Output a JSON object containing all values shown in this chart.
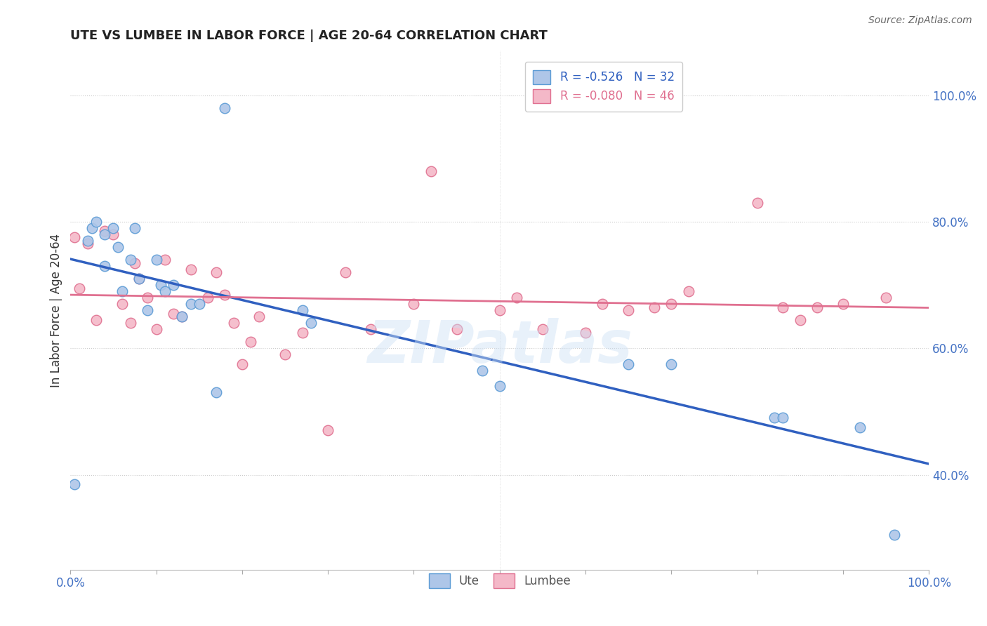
{
  "title": "UTE VS LUMBEE IN LABOR FORCE | AGE 20-64 CORRELATION CHART",
  "ylabel": "In Labor Force | Age 20-64",
  "source_text": "Source: ZipAtlas.com",
  "ute_R": -0.526,
  "ute_N": 32,
  "lumbee_R": -0.08,
  "lumbee_N": 46,
  "ute_color": "#aec6e8",
  "ute_edge_color": "#5b9bd5",
  "lumbee_color": "#f4b8c8",
  "lumbee_edge_color": "#e07090",
  "trend_ute_color": "#3060c0",
  "trend_lumbee_color": "#e07090",
  "ute_x": [
    0.005,
    0.02,
    0.025,
    0.03,
    0.04,
    0.04,
    0.05,
    0.055,
    0.06,
    0.07,
    0.075,
    0.08,
    0.09,
    0.1,
    0.105,
    0.11,
    0.12,
    0.13,
    0.14,
    0.15,
    0.17,
    0.18,
    0.27,
    0.28,
    0.48,
    0.5,
    0.65,
    0.7,
    0.82,
    0.83,
    0.92,
    0.96
  ],
  "ute_y": [
    0.385,
    0.77,
    0.79,
    0.8,
    0.78,
    0.73,
    0.79,
    0.76,
    0.69,
    0.74,
    0.79,
    0.71,
    0.66,
    0.74,
    0.7,
    0.69,
    0.7,
    0.65,
    0.67,
    0.67,
    0.53,
    0.98,
    0.66,
    0.64,
    0.565,
    0.54,
    0.575,
    0.575,
    0.49,
    0.49,
    0.475,
    0.305
  ],
  "lumbee_x": [
    0.005,
    0.01,
    0.02,
    0.03,
    0.04,
    0.05,
    0.06,
    0.07,
    0.075,
    0.08,
    0.09,
    0.1,
    0.11,
    0.12,
    0.13,
    0.14,
    0.16,
    0.17,
    0.18,
    0.19,
    0.2,
    0.21,
    0.22,
    0.25,
    0.27,
    0.3,
    0.32,
    0.35,
    0.4,
    0.42,
    0.45,
    0.5,
    0.52,
    0.55,
    0.6,
    0.62,
    0.65,
    0.68,
    0.7,
    0.72,
    0.8,
    0.83,
    0.85,
    0.87,
    0.9,
    0.95
  ],
  "lumbee_y": [
    0.775,
    0.695,
    0.765,
    0.645,
    0.785,
    0.78,
    0.67,
    0.64,
    0.735,
    0.71,
    0.68,
    0.63,
    0.74,
    0.655,
    0.65,
    0.725,
    0.68,
    0.72,
    0.685,
    0.64,
    0.575,
    0.61,
    0.65,
    0.59,
    0.625,
    0.47,
    0.72,
    0.63,
    0.67,
    0.88,
    0.63,
    0.66,
    0.68,
    0.63,
    0.625,
    0.67,
    0.66,
    0.665,
    0.67,
    0.69,
    0.83,
    0.665,
    0.645,
    0.665,
    0.67,
    0.68
  ],
  "watermark": "ZIPatlas",
  "xlim": [
    0.0,
    1.0
  ],
  "ylim": [
    0.25,
    1.07
  ],
  "yticks": [
    0.4,
    0.6,
    0.8,
    1.0
  ],
  "ytick_labels": [
    "40.0%",
    "60.0%",
    "80.0%",
    "100.0%"
  ],
  "xtick_positions": [
    0.0,
    0.1,
    0.2,
    0.3,
    0.4,
    0.5,
    0.6,
    0.7,
    0.8,
    0.9,
    1.0
  ],
  "xtick_labels_show": [
    "0.0%",
    "",
    "",
    "",
    "",
    "",
    "",
    "",
    "",
    "",
    "100.0%"
  ],
  "grid_color": "#cccccc",
  "bg_color": "#ffffff",
  "title_color": "#222222",
  "label_color": "#4472c4",
  "legend_text_color_ute": "#3060c0",
  "legend_text_color_lumbee": "#e07090",
  "marker_size": 110,
  "title_fontsize": 13,
  "axis_fontsize": 12
}
